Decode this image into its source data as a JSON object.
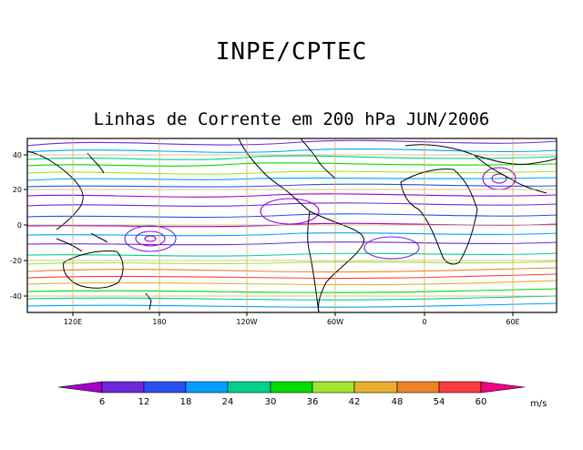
{
  "header": {
    "title": "INPE/CPTEC",
    "subtitle": "Linhas de Corrente em 200 hPa JUN/2006"
  },
  "map": {
    "lat_labels": [
      "40",
      "20",
      "0",
      "-20",
      "-40"
    ],
    "lon_labels": [
      "120E",
      "180",
      "120W",
      "60W",
      "0",
      "60E"
    ],
    "grid_color": "#c8b060",
    "land_color": "#000000"
  },
  "colorbar": {
    "labels": [
      "6",
      "12",
      "18",
      "24",
      "30",
      "36",
      "42",
      "48",
      "54",
      "60"
    ],
    "unit": "m/s",
    "colors": [
      "#a000c8",
      "#6e28dc",
      "#2850f0",
      "#00a0ff",
      "#00d08c",
      "#00dc00",
      "#a0e632",
      "#e6af2d",
      "#f08228",
      "#fa3c3c",
      "#f00082"
    ]
  }
}
